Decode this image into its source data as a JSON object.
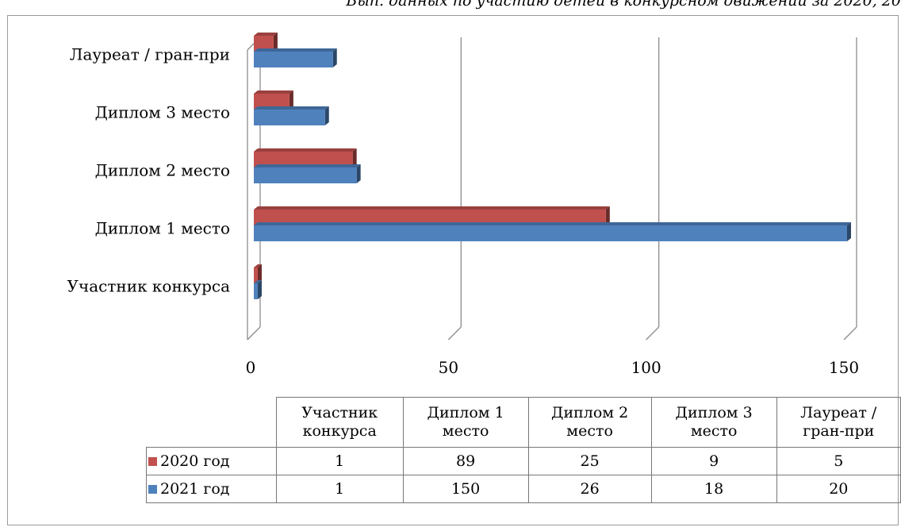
{
  "title": "Вып. данных по участию детей в конкурсном движении за 2020, 20",
  "chart_data": {
    "type": "bar",
    "orientation": "horizontal",
    "categories": [
      "Участник конкурса",
      "Диплом 1 место",
      "Диплом 2 место",
      "Диплом 3 место",
      "Лауреат / гран-при"
    ],
    "table_headers": [
      [
        "Участник",
        "конкурса"
      ],
      [
        "Диплом 1",
        "место"
      ],
      [
        "Диплом 2",
        "место"
      ],
      [
        "Диплом 3",
        "место"
      ],
      [
        "Лауреат /",
        "гран-при"
      ]
    ],
    "series": [
      {
        "name": "2020 год",
        "color": "#c0504d",
        "values": [
          1,
          89,
          25,
          9,
          5
        ]
      },
      {
        "name": "2021 год",
        "color": "#4f81bd",
        "values": [
          1,
          150,
          26,
          18,
          20
        ]
      }
    ],
    "x_ticks": [
      "0",
      "50",
      "100",
      "150"
    ],
    "xlim": [
      0,
      150
    ],
    "grid": true,
    "style": "3d-clustered-bar with data table"
  }
}
